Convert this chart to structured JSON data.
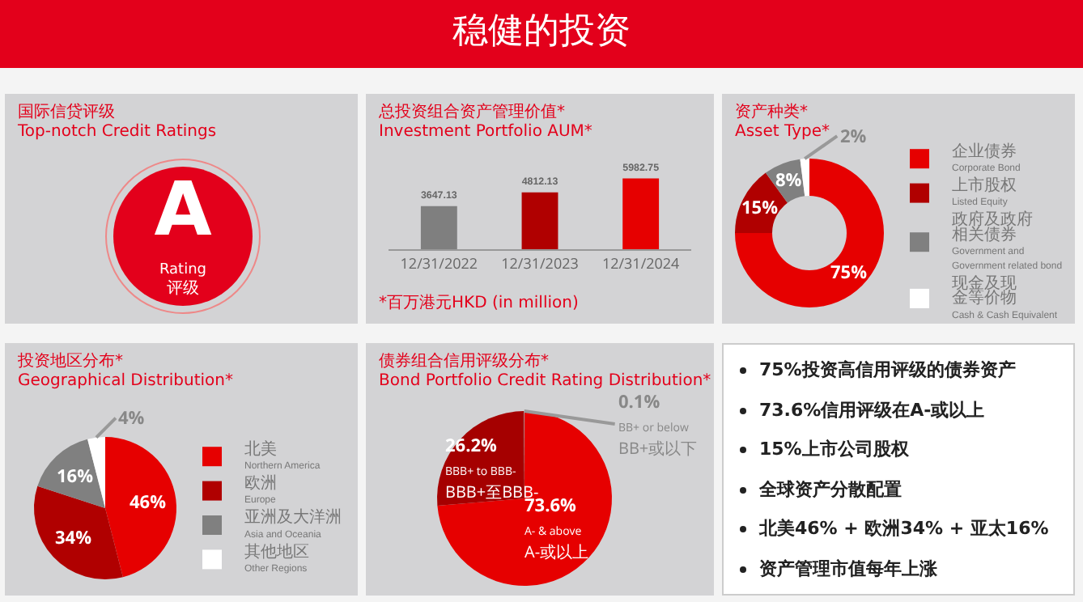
{
  "chart_data": [
    {
      "type": "other",
      "title": "稳健的投资"
    },
    {
      "type": "other",
      "title": "国际信贷评级\nTop-notch Credit Ratings",
      "annotations": [
        "A",
        "Rating",
        "评级"
      ]
    },
    {
      "type": "bar",
      "title": "总投资组合资产管理价值*\nInvestment Portfolio AUM*",
      "categories": [
        "12/31/2022",
        "12/31/2023",
        "12/31/2024"
      ],
      "values": [
        3647.13,
        4812.13,
        5982.75
      ],
      "colors": [
        "#7f7f7f",
        "#b00000",
        "#e60000"
      ],
      "data_labels": true,
      "annotations": [
        "*百万港元HKD (in million)"
      ]
    },
    {
      "type": "donut",
      "title": "资产种类*\nAsset Type*",
      "categories": [
        "企业债券\nCorporate Bond",
        "上市股权\nListed Equity",
        "政府及政府相关债券\nGovernment and\nGovernment related bond",
        "现金及现金等价物\nCash & Cash Equivalent"
      ],
      "values": [
        75,
        15,
        8,
        2
      ],
      "value_labels": [
        "75%",
        "15%",
        "8%",
        "2%"
      ],
      "colors": [
        "#e60000",
        "#b00000",
        "#808080",
        "#ffffff"
      ],
      "legend": "right"
    },
    {
      "type": "pie",
      "title": "投资地区分布*\nGeographical Distribution*",
      "categories": [
        "北美\nNorthern America",
        "欧洲\nEurope",
        "亚洲及大洋洲\nAsia and Oceania",
        "其他地区\nOther Regions"
      ],
      "values": [
        46,
        34,
        16,
        4
      ],
      "value_labels": [
        "46%",
        "34%",
        "16%",
        "4%"
      ],
      "colors": [
        "#e60000",
        "#b00000",
        "#808080",
        "#ffffff"
      ],
      "legend": "right"
    },
    {
      "type": "pie",
      "title": "债券组合信用评级分布*\nBond Portfolio Credit Rating Distribution*",
      "categories": [
        "A- & above\nA-或以上",
        "BBB+ to BBB-\nBBB+至BBB-",
        "BB+ or below\nBB+或以下"
      ],
      "values": [
        73.6,
        26.2,
        0.1
      ],
      "value_labels": [
        "73.6%",
        "26.2%",
        "0.1%"
      ],
      "colors": [
        "#e60000",
        "#a50000",
        "#9a9a9a"
      ]
    },
    {
      "type": "other",
      "annotations": [
        "75%投资高信用评级的债券资产",
        "73.6%信用评级在A-或以上",
        "15%上市公司股权",
        "全球资产分散配置",
        "北美46% + 欧洲34% + 亚太16%",
        "资产管理市值每年上涨"
      ]
    }
  ]
}
